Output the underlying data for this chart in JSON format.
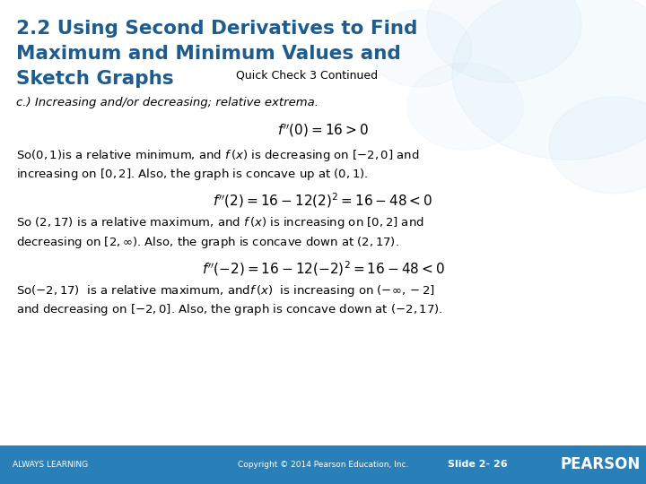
{
  "title_line1": "2.2 Using Second Derivatives to Find",
  "title_line2": "Maximum and Minimum Values and",
  "title_line3": "Sketch Graphs",
  "subtitle": "Quick Check 3 Continued",
  "title_color": "#1F5C8B",
  "footer_bg": "#2980B9",
  "footer_text_left": "ALWAYS LEARNING",
  "footer_text_center": "Copyright © 2014 Pearson Education, Inc.",
  "footer_text_right": "Slide 2- 26",
  "footer_logo": "PEARSON",
  "line_c": "c.) Increasing and/or decreasing; relative extrema."
}
